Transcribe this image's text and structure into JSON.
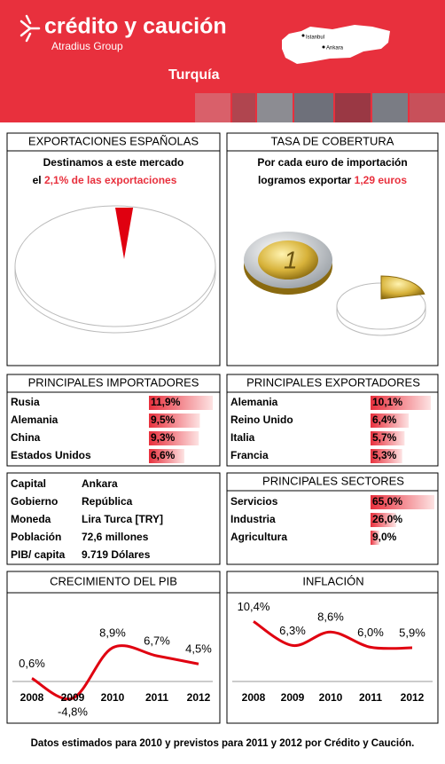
{
  "header": {
    "brand": "crédito y caución",
    "group": "Atradius Group",
    "country": "Turquía",
    "map_labels": [
      "Istanbul",
      "Ankara"
    ]
  },
  "exports": {
    "title": "EXPORTACIONES ESPAÑOLAS",
    "line1": "Destinamos a este mercado",
    "prefix": "el",
    "value": 2.1,
    "value_label": "2,1%",
    "suffix": "de las exportaciones"
  },
  "coverage": {
    "title": "TASA DE COBERTURA",
    "line1": "Por cada euro de importación",
    "line2": "logramos exportar",
    "value": 1.29,
    "value_label": "1,29 euros"
  },
  "importers": {
    "title": "PRINCIPALES IMPORTADORES",
    "rows": [
      {
        "name": "Rusia",
        "value": 11.9,
        "label": "11,9%"
      },
      {
        "name": "Alemania",
        "value": 9.5,
        "label": "9,5%"
      },
      {
        "name": "China",
        "value": 9.3,
        "label": "9,3%"
      },
      {
        "name": "Estados Unidos",
        "value": 6.6,
        "label": "6,6%"
      }
    ]
  },
  "exporters": {
    "title": "PRINCIPALES EXPORTADORES",
    "rows": [
      {
        "name": "Alemania",
        "value": 10.1,
        "label": "10,1%"
      },
      {
        "name": "Reino Unido",
        "value": 6.4,
        "label": "6,4%"
      },
      {
        "name": "Italia",
        "value": 5.7,
        "label": "5,7%"
      },
      {
        "name": "Francia",
        "value": 5.3,
        "label": "5,3%"
      }
    ]
  },
  "facts": {
    "rows": [
      {
        "label": "Capital",
        "value": "Ankara"
      },
      {
        "label": "Gobierno",
        "value": "República"
      },
      {
        "label": "Moneda",
        "value": "Lira Turca [TRY]"
      },
      {
        "label": "Población",
        "value": "72,6 millones"
      },
      {
        "label": "PIB/ capita",
        "value": "9.719 Dólares"
      }
    ]
  },
  "sectors": {
    "title": "PRINCIPALES SECTORES",
    "rows": [
      {
        "name": "Servicios",
        "value": 65.0,
        "label": "65,0%"
      },
      {
        "name": "Industria",
        "value": 26.0,
        "label": "26,0%"
      },
      {
        "name": "Agricultura",
        "value": 9.0,
        "label": "9,0%"
      }
    ]
  },
  "gdp": {
    "title": "CRECIMIENTO DEL PIB",
    "categories": [
      "2008",
      "2009",
      "2010",
      "2011",
      "2012"
    ],
    "values": [
      0.6,
      -4.8,
      8.9,
      6.7,
      4.5
    ],
    "value_labels": [
      "0,6%",
      "-4,8%",
      "8,9%",
      "6,7%",
      "4,5%"
    ]
  },
  "inflation": {
    "title": "INFLACIÓN",
    "categories": [
      "2008",
      "2009",
      "2010",
      "2011",
      "2012"
    ],
    "values": [
      10.4,
      6.3,
      8.6,
      6.0,
      5.9
    ],
    "value_labels": [
      "10,4%",
      "6,3%",
      "8,6%",
      "6,0%",
      "5,9%"
    ]
  },
  "footer": "Datos estimados para 2010 y previstos para 2011  y 2012 por Crédito y Caución."
}
